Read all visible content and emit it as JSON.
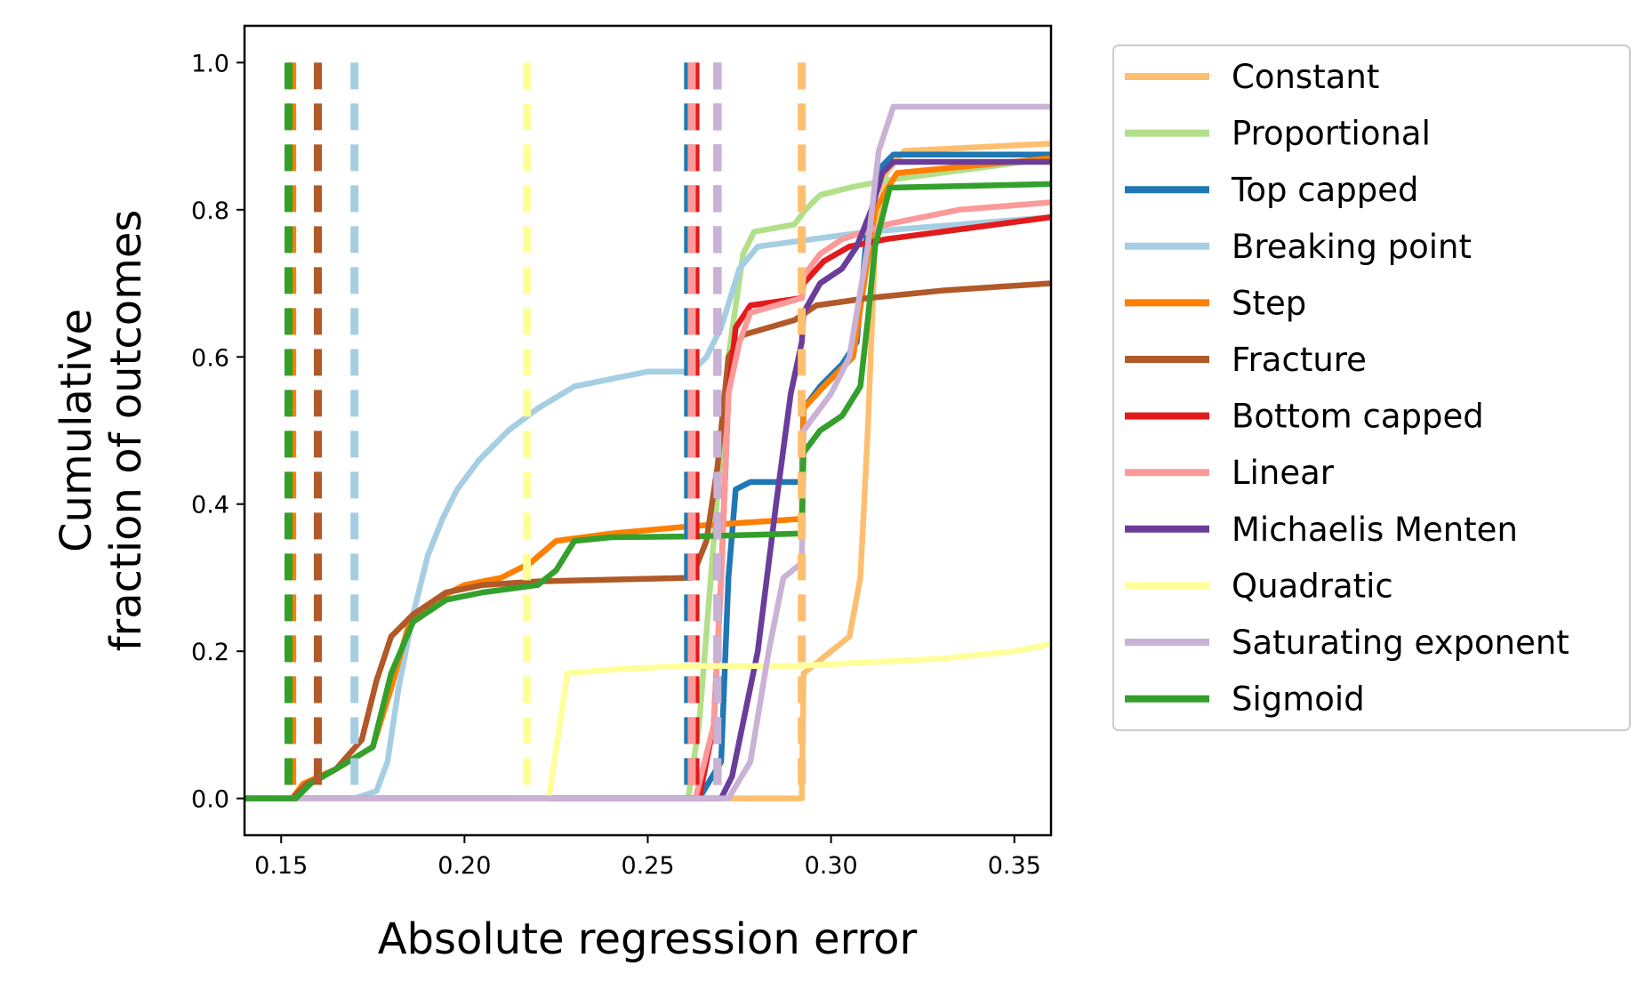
{
  "chart_data": {
    "type": "line",
    "xlabel": "Absolute regression error",
    "ylabel_line1": "Cumulative",
    "ylabel_line2": "fraction of outcomes",
    "xlim": [
      0.14,
      0.36
    ],
    "ylim": [
      -0.05,
      1.05
    ],
    "xticks": [
      0.15,
      0.2,
      0.25,
      0.3,
      0.35
    ],
    "xtick_labels": [
      "0.15",
      "0.20",
      "0.25",
      "0.30",
      "0.35"
    ],
    "yticks": [
      0.0,
      0.2,
      0.4,
      0.6,
      0.8,
      1.0
    ],
    "ytick_labels": [
      "0.0",
      "0.2",
      "0.4",
      "0.6",
      "0.8",
      "1.0"
    ],
    "grid": false,
    "legend_position": "outside-right",
    "series": [
      {
        "name": "Constant",
        "color": "#fdbf6f",
        "median": 0.292,
        "points": [
          [
            0.14,
            0
          ],
          [
            0.292,
            0
          ],
          [
            0.2925,
            0.17
          ],
          [
            0.3,
            0.2
          ],
          [
            0.305,
            0.22
          ],
          [
            0.308,
            0.3
          ],
          [
            0.31,
            0.5
          ],
          [
            0.312,
            0.75
          ],
          [
            0.315,
            0.85
          ],
          [
            0.32,
            0.88
          ],
          [
            0.36,
            0.89
          ]
        ]
      },
      {
        "name": "Proportional",
        "color": "#b2df8a",
        "median": 0.261,
        "points": [
          [
            0.14,
            0
          ],
          [
            0.261,
            0
          ],
          [
            0.264,
            0.1
          ],
          [
            0.268,
            0.35
          ],
          [
            0.272,
            0.6
          ],
          [
            0.276,
            0.74
          ],
          [
            0.279,
            0.77
          ],
          [
            0.29,
            0.78
          ],
          [
            0.293,
            0.8
          ],
          [
            0.297,
            0.82
          ],
          [
            0.305,
            0.83
          ],
          [
            0.315,
            0.84
          ],
          [
            0.36,
            0.87
          ]
        ]
      },
      {
        "name": "Top capped",
        "color": "#1f78b4",
        "median": 0.261,
        "points": [
          [
            0.14,
            0
          ],
          [
            0.264,
            0
          ],
          [
            0.27,
            0.05
          ],
          [
            0.272,
            0.3
          ],
          [
            0.274,
            0.42
          ],
          [
            0.278,
            0.43
          ],
          [
            0.292,
            0.43
          ],
          [
            0.2925,
            0.53
          ],
          [
            0.297,
            0.56
          ],
          [
            0.303,
            0.59
          ],
          [
            0.307,
            0.62
          ],
          [
            0.31,
            0.78
          ],
          [
            0.314,
            0.86
          ],
          [
            0.317,
            0.875
          ],
          [
            0.36,
            0.875
          ]
        ]
      },
      {
        "name": "Breaking point",
        "color": "#a6cee3",
        "median": 0.17,
        "points": [
          [
            0.14,
            0
          ],
          [
            0.17,
            0
          ],
          [
            0.176,
            0.01
          ],
          [
            0.179,
            0.05
          ],
          [
            0.182,
            0.15
          ],
          [
            0.186,
            0.25
          ],
          [
            0.19,
            0.33
          ],
          [
            0.194,
            0.38
          ],
          [
            0.198,
            0.42
          ],
          [
            0.204,
            0.46
          ],
          [
            0.212,
            0.5
          ],
          [
            0.22,
            0.53
          ],
          [
            0.23,
            0.56
          ],
          [
            0.24,
            0.57
          ],
          [
            0.25,
            0.58
          ],
          [
            0.262,
            0.58
          ],
          [
            0.266,
            0.6
          ],
          [
            0.27,
            0.64
          ],
          [
            0.275,
            0.72
          ],
          [
            0.28,
            0.75
          ],
          [
            0.295,
            0.76
          ],
          [
            0.31,
            0.77
          ],
          [
            0.36,
            0.79
          ]
        ]
      },
      {
        "name": "Step",
        "color": "#ff7f00",
        "median": 0.153,
        "points": [
          [
            0.14,
            0
          ],
          [
            0.153,
            0
          ],
          [
            0.156,
            0.02
          ],
          [
            0.165,
            0.04
          ],
          [
            0.175,
            0.07
          ],
          [
            0.18,
            0.15
          ],
          [
            0.185,
            0.24
          ],
          [
            0.192,
            0.27
          ],
          [
            0.2,
            0.29
          ],
          [
            0.21,
            0.3
          ],
          [
            0.218,
            0.32
          ],
          [
            0.225,
            0.35
          ],
          [
            0.24,
            0.36
          ],
          [
            0.262,
            0.37
          ],
          [
            0.292,
            0.38
          ],
          [
            0.2925,
            0.53
          ],
          [
            0.298,
            0.56
          ],
          [
            0.306,
            0.6
          ],
          [
            0.312,
            0.8
          ],
          [
            0.318,
            0.85
          ],
          [
            0.36,
            0.87
          ]
        ]
      },
      {
        "name": "Fracture",
        "color": "#b15928",
        "median": 0.16,
        "points": [
          [
            0.14,
            0
          ],
          [
            0.153,
            0
          ],
          [
            0.157,
            0.02
          ],
          [
            0.165,
            0.04
          ],
          [
            0.172,
            0.08
          ],
          [
            0.176,
            0.16
          ],
          [
            0.18,
            0.22
          ],
          [
            0.186,
            0.25
          ],
          [
            0.195,
            0.28
          ],
          [
            0.205,
            0.29
          ],
          [
            0.22,
            0.295
          ],
          [
            0.262,
            0.3
          ],
          [
            0.266,
            0.35
          ],
          [
            0.269,
            0.45
          ],
          [
            0.272,
            0.6
          ],
          [
            0.276,
            0.63
          ],
          [
            0.29,
            0.65
          ],
          [
            0.296,
            0.67
          ],
          [
            0.31,
            0.68
          ],
          [
            0.33,
            0.69
          ],
          [
            0.36,
            0.7
          ]
        ]
      },
      {
        "name": "Bottom capped",
        "color": "#e31a1c",
        "median": 0.263,
        "points": [
          [
            0.14,
            0
          ],
          [
            0.264,
            0
          ],
          [
            0.268,
            0.1
          ],
          [
            0.27,
            0.3
          ],
          [
            0.272,
            0.55
          ],
          [
            0.274,
            0.64
          ],
          [
            0.278,
            0.67
          ],
          [
            0.292,
            0.68
          ],
          [
            0.2925,
            0.7
          ],
          [
            0.298,
            0.73
          ],
          [
            0.305,
            0.75
          ],
          [
            0.315,
            0.76
          ],
          [
            0.33,
            0.77
          ],
          [
            0.345,
            0.78
          ],
          [
            0.36,
            0.79
          ]
        ]
      },
      {
        "name": "Linear",
        "color": "#fb9a99",
        "median": 0.262,
        "points": [
          [
            0.14,
            0
          ],
          [
            0.263,
            0
          ],
          [
            0.268,
            0.1
          ],
          [
            0.27,
            0.3
          ],
          [
            0.272,
            0.55
          ],
          [
            0.275,
            0.62
          ],
          [
            0.278,
            0.66
          ],
          [
            0.292,
            0.68
          ],
          [
            0.2925,
            0.71
          ],
          [
            0.297,
            0.74
          ],
          [
            0.303,
            0.76
          ],
          [
            0.315,
            0.78
          ],
          [
            0.335,
            0.8
          ],
          [
            0.36,
            0.81
          ]
        ]
      },
      {
        "name": "Michaelis Menten",
        "color": "#6a3d9a",
        "median": 0.269,
        "points": [
          [
            0.14,
            0
          ],
          [
            0.27,
            0
          ],
          [
            0.273,
            0.03
          ],
          [
            0.28,
            0.2
          ],
          [
            0.285,
            0.4
          ],
          [
            0.289,
            0.55
          ],
          [
            0.292,
            0.62
          ],
          [
            0.2925,
            0.66
          ],
          [
            0.297,
            0.7
          ],
          [
            0.303,
            0.72
          ],
          [
            0.307,
            0.75
          ],
          [
            0.311,
            0.8
          ],
          [
            0.314,
            0.85
          ],
          [
            0.317,
            0.865
          ],
          [
            0.36,
            0.865
          ]
        ]
      },
      {
        "name": "Quadratic",
        "color": "#ffff99",
        "median": 0.217,
        "points": [
          [
            0.14,
            0
          ],
          [
            0.223,
            0
          ],
          [
            0.226,
            0.1
          ],
          [
            0.228,
            0.17
          ],
          [
            0.24,
            0.175
          ],
          [
            0.26,
            0.18
          ],
          [
            0.29,
            0.18
          ],
          [
            0.31,
            0.185
          ],
          [
            0.33,
            0.19
          ],
          [
            0.35,
            0.2
          ],
          [
            0.36,
            0.21
          ]
        ]
      },
      {
        "name": "Saturating exponent",
        "color": "#cab2d6",
        "median": 0.269,
        "points": [
          [
            0.14,
            0
          ],
          [
            0.272,
            0
          ],
          [
            0.278,
            0.05
          ],
          [
            0.283,
            0.2
          ],
          [
            0.287,
            0.3
          ],
          [
            0.292,
            0.32
          ],
          [
            0.2925,
            0.5
          ],
          [
            0.3,
            0.55
          ],
          [
            0.305,
            0.6
          ],
          [
            0.31,
            0.75
          ],
          [
            0.313,
            0.88
          ],
          [
            0.317,
            0.94
          ],
          [
            0.36,
            0.94
          ]
        ]
      },
      {
        "name": "Sigmoid",
        "color": "#33a02c",
        "median": 0.152,
        "points": [
          [
            0.14,
            0
          ],
          [
            0.154,
            0
          ],
          [
            0.158,
            0.02
          ],
          [
            0.165,
            0.04
          ],
          [
            0.175,
            0.07
          ],
          [
            0.18,
            0.17
          ],
          [
            0.186,
            0.24
          ],
          [
            0.195,
            0.27
          ],
          [
            0.205,
            0.28
          ],
          [
            0.22,
            0.29
          ],
          [
            0.225,
            0.31
          ],
          [
            0.23,
            0.35
          ],
          [
            0.24,
            0.355
          ],
          [
            0.262,
            0.356
          ],
          [
            0.292,
            0.36
          ],
          [
            0.2925,
            0.47
          ],
          [
            0.297,
            0.5
          ],
          [
            0.303,
            0.52
          ],
          [
            0.308,
            0.56
          ],
          [
            0.31,
            0.65
          ],
          [
            0.312,
            0.75
          ],
          [
            0.316,
            0.83
          ],
          [
            0.36,
            0.835
          ]
        ]
      }
    ]
  }
}
